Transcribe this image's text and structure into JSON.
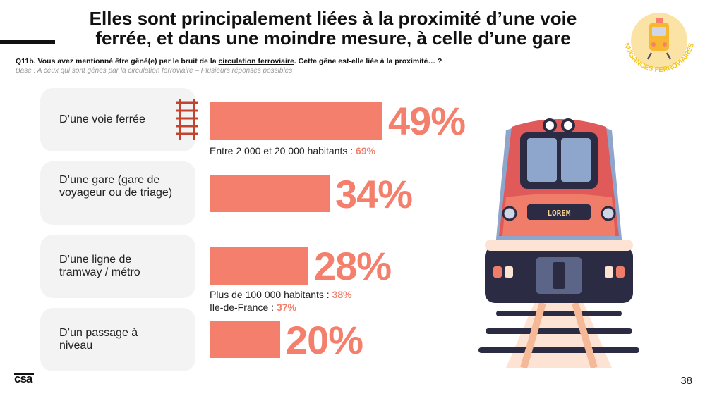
{
  "title": "Elles sont principalement liées à la proximité d’une voie ferrée, et dans une moindre mesure, à celle d’une gare",
  "badge": {
    "text": "NUISANCES FERROVIAIRES",
    "color": "#f5c518"
  },
  "question": {
    "prefix": "Q11b. Vous avez mentionné être gêné(e) par le bruit de la ",
    "underlined": "circulation ferroviaire",
    "suffix": ". Cette gêne est-elle liée à la proximité… ?"
  },
  "base": "Base : A ceux qui sont gênés par la circulation ferroviaire – Plusieurs réponses possibles",
  "colors": {
    "accent": "#f47f6c",
    "card": "#f3f3f3",
    "title": "#111111"
  },
  "items": [
    {
      "label": "D’une voie ferrée",
      "pct_label": "49%",
      "notes": [
        {
          "text": "Entre 2 000 et 20 000 habitants : ",
          "value": "69%"
        }
      ]
    },
    {
      "label": "D’une gare (gare de voyageur ou de triage)",
      "pct_label": "34%",
      "notes": []
    },
    {
      "label": "D’une ligne de tramway / métro",
      "pct_label": "28%",
      "notes": [
        {
          "text": "Plus de 100 000 habitants : ",
          "value": "38%"
        },
        {
          "text": "Ile-de-France : ",
          "value": "37%"
        }
      ]
    },
    {
      "label": "D’un passage à niveau",
      "pct_label": "20%",
      "notes": []
    }
  ],
  "chart_data": {
    "type": "bar",
    "orientation": "horizontal",
    "categories": [
      "D’une voie ferrée",
      "D’une gare (gare de voyageur ou de triage)",
      "D’une ligne de tramway / métro",
      "D’un passage à niveau"
    ],
    "values": [
      49,
      34,
      28,
      20
    ],
    "unit": "%"
  },
  "train_sign": "LOREM",
  "footer": {
    "logo": "csa",
    "page": "38"
  }
}
